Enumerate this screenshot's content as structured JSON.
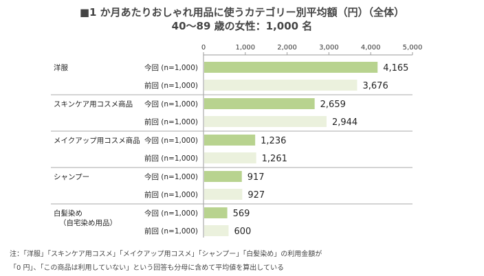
{
  "header": {
    "title_line1": "■1 か月あたりおしゃれ用品に使うカテゴリー別平均額（円）（全体）",
    "title_line2": "40～89 歳の女性：1,000 名"
  },
  "notes": {
    "line1": "注：「洋服」「スキンケア用コスメ」「メイクアップ用コスメ」「シャンプー」「白髪染め」の利用金額が",
    "line2": "「0 円」、「この商品は利用していない」という回答も分母に含めて平均値を算出している"
  },
  "colors": {
    "current": "#b8d38f",
    "previous": "#ebf1dd",
    "axis": "#999999",
    "separator": "#aaaaaa"
  },
  "chart_data": {
    "type": "bar",
    "orientation": "horizontal",
    "title": "1 か月あたりおしゃれ用品に使うカテゴリー別平均額（円）（全体）",
    "subtitle": "40～89 歳の女性：1,000 名",
    "xlim": [
      0,
      5000
    ],
    "ticks": [
      0,
      1000,
      2000,
      3000,
      4000,
      5000
    ],
    "tick_labels": [
      "0",
      "1,000",
      "2,000",
      "3,000",
      "4,000",
      "5,000"
    ],
    "series": [
      {
        "name": "今回 (n=1,000)",
        "values": [
          4165,
          2659,
          1236,
          917,
          569
        ]
      },
      {
        "name": "前回 (n=1,000)",
        "values": [
          3676,
          2944,
          1261,
          927,
          600
        ]
      }
    ],
    "value_labels": [
      [
        "4,165",
        "2,659",
        "1,236",
        "917",
        "569"
      ],
      [
        "3,676",
        "2,944",
        "1,261",
        "927",
        "600"
      ]
    ],
    "categories": [
      {
        "label": "洋服",
        "sublabel": ""
      },
      {
        "label": "スキンケア用コスメ商品",
        "sublabel": ""
      },
      {
        "label": "メイクアップ用コスメ商品",
        "sublabel": ""
      },
      {
        "label": "シャンプー",
        "sublabel": ""
      },
      {
        "label": "白髪染め",
        "sublabel": "（自宅染め用品）"
      }
    ]
  }
}
